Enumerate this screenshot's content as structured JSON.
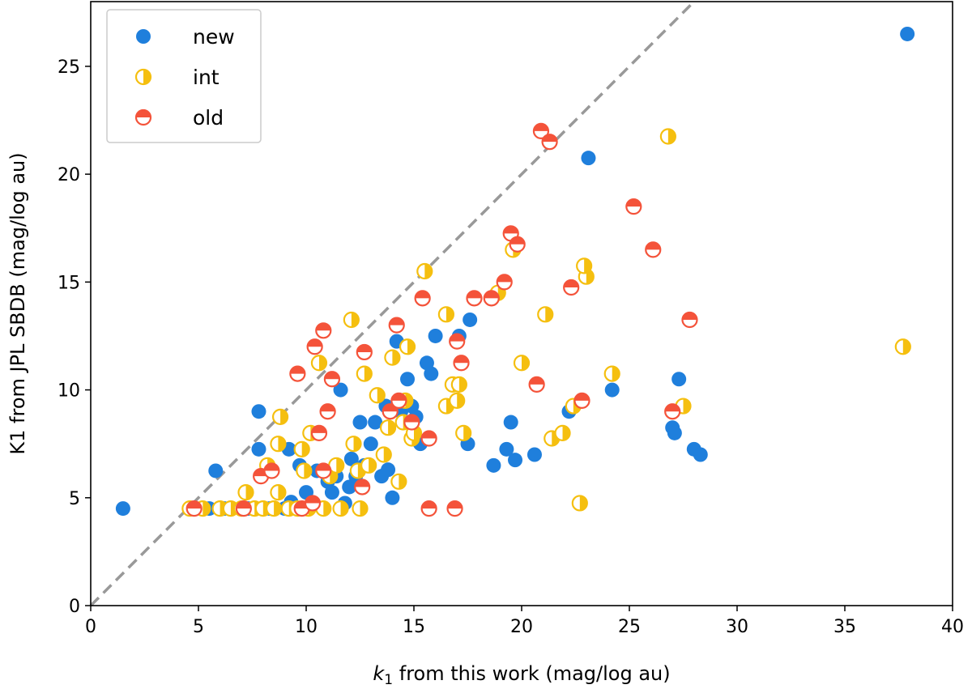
{
  "chart_data": {
    "type": "scatter",
    "title": "",
    "xlabel_italic_symbol": "k",
    "xlabel_subscript": "1",
    "xlabel_rest": " from this work (mag/log au)",
    "ylabel": "K1 from JPL SBDB (mag/log au)",
    "xlim": [
      0,
      40
    ],
    "ylim": [
      0,
      28
    ],
    "x_ticks": [
      0,
      5,
      10,
      15,
      20,
      25,
      30,
      35,
      40
    ],
    "y_ticks": [
      0,
      5,
      10,
      15,
      20,
      25
    ],
    "x_tick_labels": [
      "0",
      "5",
      "10",
      "15",
      "20",
      "25",
      "30",
      "35",
      "40"
    ],
    "y_tick_labels": [
      "0",
      "5",
      "10",
      "15",
      "20",
      "25"
    ],
    "grid": false,
    "legend_position": "top-left",
    "reference_line": {
      "type": "y=x",
      "style": "dashed",
      "color": "#999999"
    },
    "series": [
      {
        "name": "new",
        "color": "#1f7fdc",
        "marker": "filled-circle",
        "points": [
          [
            1.5,
            4.5
          ],
          [
            5.5,
            4.5
          ],
          [
            5.8,
            6.25
          ],
          [
            6.2,
            4.5
          ],
          [
            7.3,
            4.5
          ],
          [
            7.8,
            7.25
          ],
          [
            7.8,
            9.0
          ],
          [
            8.3,
            4.5
          ],
          [
            9.0,
            4.5
          ],
          [
            9.2,
            7.25
          ],
          [
            9.3,
            4.8
          ],
          [
            9.7,
            6.5
          ],
          [
            10.0,
            5.25
          ],
          [
            10.5,
            6.25
          ],
          [
            10.8,
            4.5
          ],
          [
            11.0,
            5.75
          ],
          [
            11.2,
            5.25
          ],
          [
            11.4,
            6.0
          ],
          [
            11.6,
            10.0
          ],
          [
            11.8,
            4.75
          ],
          [
            12.0,
            5.5
          ],
          [
            12.1,
            6.8
          ],
          [
            12.3,
            6.0
          ],
          [
            12.5,
            8.5
          ],
          [
            12.7,
            6.5
          ],
          [
            13.0,
            7.5
          ],
          [
            13.2,
            8.5
          ],
          [
            13.5,
            6.0
          ],
          [
            13.7,
            9.25
          ],
          [
            13.8,
            6.3
          ],
          [
            14.0,
            5.0
          ],
          [
            14.2,
            12.25
          ],
          [
            14.4,
            9.0
          ],
          [
            14.7,
            10.5
          ],
          [
            14.9,
            9.25
          ],
          [
            15.1,
            8.75
          ],
          [
            15.3,
            7.5
          ],
          [
            15.6,
            11.25
          ],
          [
            15.8,
            10.75
          ],
          [
            16.0,
            12.5
          ],
          [
            17.1,
            12.5
          ],
          [
            17.6,
            13.25
          ],
          [
            17.5,
            7.5
          ],
          [
            18.7,
            6.5
          ],
          [
            19.3,
            7.25
          ],
          [
            19.5,
            8.5
          ],
          [
            19.7,
            6.75
          ],
          [
            20.6,
            7.0
          ],
          [
            22.2,
            9.0
          ],
          [
            23.1,
            20.75
          ],
          [
            24.2,
            10.0
          ],
          [
            27.0,
            8.25
          ],
          [
            27.1,
            8.0
          ],
          [
            27.3,
            10.5
          ],
          [
            28.0,
            7.25
          ],
          [
            28.3,
            7.0
          ],
          [
            37.9,
            26.5
          ]
        ]
      },
      {
        "name": "int",
        "color": "#f5bf0f",
        "marker": "half-filled-circle-left",
        "points": [
          [
            4.6,
            4.5
          ],
          [
            5.2,
            4.5
          ],
          [
            6.0,
            4.5
          ],
          [
            6.5,
            4.5
          ],
          [
            7.0,
            4.5
          ],
          [
            7.2,
            5.25
          ],
          [
            7.6,
            4.5
          ],
          [
            8.0,
            4.5
          ],
          [
            8.2,
            6.5
          ],
          [
            8.5,
            4.5
          ],
          [
            8.7,
            7.5
          ],
          [
            8.8,
            8.75
          ],
          [
            8.7,
            5.25
          ],
          [
            9.2,
            4.5
          ],
          [
            9.6,
            4.5
          ],
          [
            9.8,
            7.25
          ],
          [
            9.9,
            6.25
          ],
          [
            10.1,
            4.5
          ],
          [
            10.2,
            8.0
          ],
          [
            10.6,
            11.25
          ],
          [
            10.8,
            4.5
          ],
          [
            11.1,
            6.0
          ],
          [
            11.4,
            6.5
          ],
          [
            11.6,
            4.5
          ],
          [
            12.1,
            13.25
          ],
          [
            12.2,
            7.5
          ],
          [
            12.4,
            6.25
          ],
          [
            12.5,
            4.5
          ],
          [
            12.7,
            10.75
          ],
          [
            12.9,
            6.5
          ],
          [
            13.3,
            9.75
          ],
          [
            13.6,
            7.0
          ],
          [
            13.8,
            8.25
          ],
          [
            14.0,
            11.5
          ],
          [
            14.3,
            5.75
          ],
          [
            14.5,
            8.5
          ],
          [
            14.6,
            9.5
          ],
          [
            14.7,
            12.0
          ],
          [
            14.9,
            7.75
          ],
          [
            15.0,
            8.0
          ],
          [
            15.5,
            15.5
          ],
          [
            16.5,
            13.5
          ],
          [
            16.5,
            9.25
          ],
          [
            16.8,
            10.25
          ],
          [
            17.0,
            9.5
          ],
          [
            17.1,
            10.25
          ],
          [
            17.3,
            8.0
          ],
          [
            18.9,
            14.5
          ],
          [
            19.6,
            16.5
          ],
          [
            20.0,
            11.25
          ],
          [
            21.1,
            13.5
          ],
          [
            21.4,
            7.75
          ],
          [
            21.9,
            8.0
          ],
          [
            22.4,
            9.25
          ],
          [
            22.7,
            4.75
          ],
          [
            23.0,
            15.25
          ],
          [
            22.9,
            15.75
          ],
          [
            24.2,
            10.75
          ],
          [
            26.8,
            21.75
          ],
          [
            27.5,
            9.25
          ],
          [
            37.7,
            12.0
          ]
        ]
      },
      {
        "name": "old",
        "color": "#f4533a",
        "marker": "half-filled-circle-bottom",
        "points": [
          [
            4.8,
            4.5
          ],
          [
            7.1,
            4.5
          ],
          [
            7.9,
            6.0
          ],
          [
            8.4,
            6.25
          ],
          [
            9.6,
            10.75
          ],
          [
            9.8,
            4.5
          ],
          [
            10.3,
            4.75
          ],
          [
            10.4,
            12.0
          ],
          [
            10.6,
            8.0
          ],
          [
            10.8,
            12.75
          ],
          [
            10.8,
            6.25
          ],
          [
            11.0,
            9.0
          ],
          [
            11.2,
            10.5
          ],
          [
            12.6,
            5.5
          ],
          [
            12.7,
            11.75
          ],
          [
            13.9,
            9.0
          ],
          [
            14.2,
            13.0
          ],
          [
            14.3,
            9.5
          ],
          [
            14.9,
            8.5
          ],
          [
            15.4,
            14.25
          ],
          [
            15.7,
            7.75
          ],
          [
            15.7,
            4.5
          ],
          [
            16.9,
            4.5
          ],
          [
            17.0,
            12.25
          ],
          [
            17.2,
            11.25
          ],
          [
            17.8,
            14.25
          ],
          [
            18.6,
            14.25
          ],
          [
            19.2,
            15.0
          ],
          [
            19.5,
            17.25
          ],
          [
            19.8,
            16.75
          ],
          [
            20.7,
            10.25
          ],
          [
            20.9,
            22.0
          ],
          [
            21.3,
            21.5
          ],
          [
            22.3,
            14.75
          ],
          [
            22.8,
            9.5
          ],
          [
            25.2,
            18.5
          ],
          [
            26.1,
            16.5
          ],
          [
            27.0,
            9.0
          ],
          [
            27.8,
            13.25
          ]
        ]
      }
    ]
  }
}
